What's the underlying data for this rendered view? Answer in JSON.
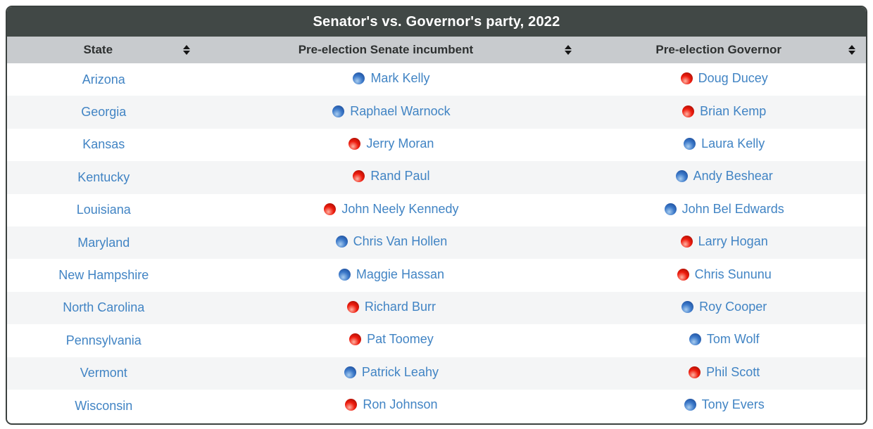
{
  "title": "Senator's vs. Governor's party, 2022",
  "columns": [
    {
      "label": "State",
      "sort_icon": "sort-arrows-icon"
    },
    {
      "label": "Pre-election Senate incumbent",
      "sort_icon": "sort-arrows-icon"
    },
    {
      "label": "Pre-election Governor",
      "sort_icon": "sort-arrows-icon"
    }
  ],
  "party_colors": {
    "democrat_blue": "#2f6fc4",
    "republican_red": "#e8190b"
  },
  "theme": {
    "title_bar_bg": "#414846",
    "header_row_bg": "#c8cbce",
    "link_blue": "#4184c4",
    "stripe_bg": "#f4f5f6",
    "border": "#3b413f"
  },
  "rows": [
    {
      "state": "Arizona",
      "senator": {
        "name": "Mark Kelly",
        "party": "D"
      },
      "governor": {
        "name": "Doug Ducey",
        "party": "R"
      }
    },
    {
      "state": "Georgia",
      "senator": {
        "name": "Raphael Warnock",
        "party": "D"
      },
      "governor": {
        "name": "Brian Kemp",
        "party": "R"
      }
    },
    {
      "state": "Kansas",
      "senator": {
        "name": "Jerry Moran",
        "party": "R"
      },
      "governor": {
        "name": "Laura Kelly",
        "party": "D"
      }
    },
    {
      "state": "Kentucky",
      "senator": {
        "name": "Rand Paul",
        "party": "R"
      },
      "governor": {
        "name": "Andy Beshear",
        "party": "D"
      }
    },
    {
      "state": "Louisiana",
      "senator": {
        "name": "John Neely Kennedy",
        "party": "R"
      },
      "governor": {
        "name": "John Bel Edwards",
        "party": "D"
      }
    },
    {
      "state": "Maryland",
      "senator": {
        "name": "Chris Van Hollen",
        "party": "D"
      },
      "governor": {
        "name": "Larry Hogan",
        "party": "R"
      }
    },
    {
      "state": "New Hampshire",
      "senator": {
        "name": "Maggie Hassan",
        "party": "D"
      },
      "governor": {
        "name": "Chris Sununu",
        "party": "R"
      }
    },
    {
      "state": "North Carolina",
      "senator": {
        "name": "Richard Burr",
        "party": "R"
      },
      "governor": {
        "name": "Roy Cooper",
        "party": "D"
      }
    },
    {
      "state": "Pennsylvania",
      "senator": {
        "name": "Pat Toomey",
        "party": "R"
      },
      "governor": {
        "name": "Tom Wolf",
        "party": "D"
      }
    },
    {
      "state": "Vermont",
      "senator": {
        "name": "Patrick Leahy",
        "party": "D"
      },
      "governor": {
        "name": "Phil Scott",
        "party": "R"
      }
    },
    {
      "state": "Wisconsin",
      "senator": {
        "name": "Ron Johnson",
        "party": "R"
      },
      "governor": {
        "name": "Tony Evers",
        "party": "D"
      }
    }
  ]
}
